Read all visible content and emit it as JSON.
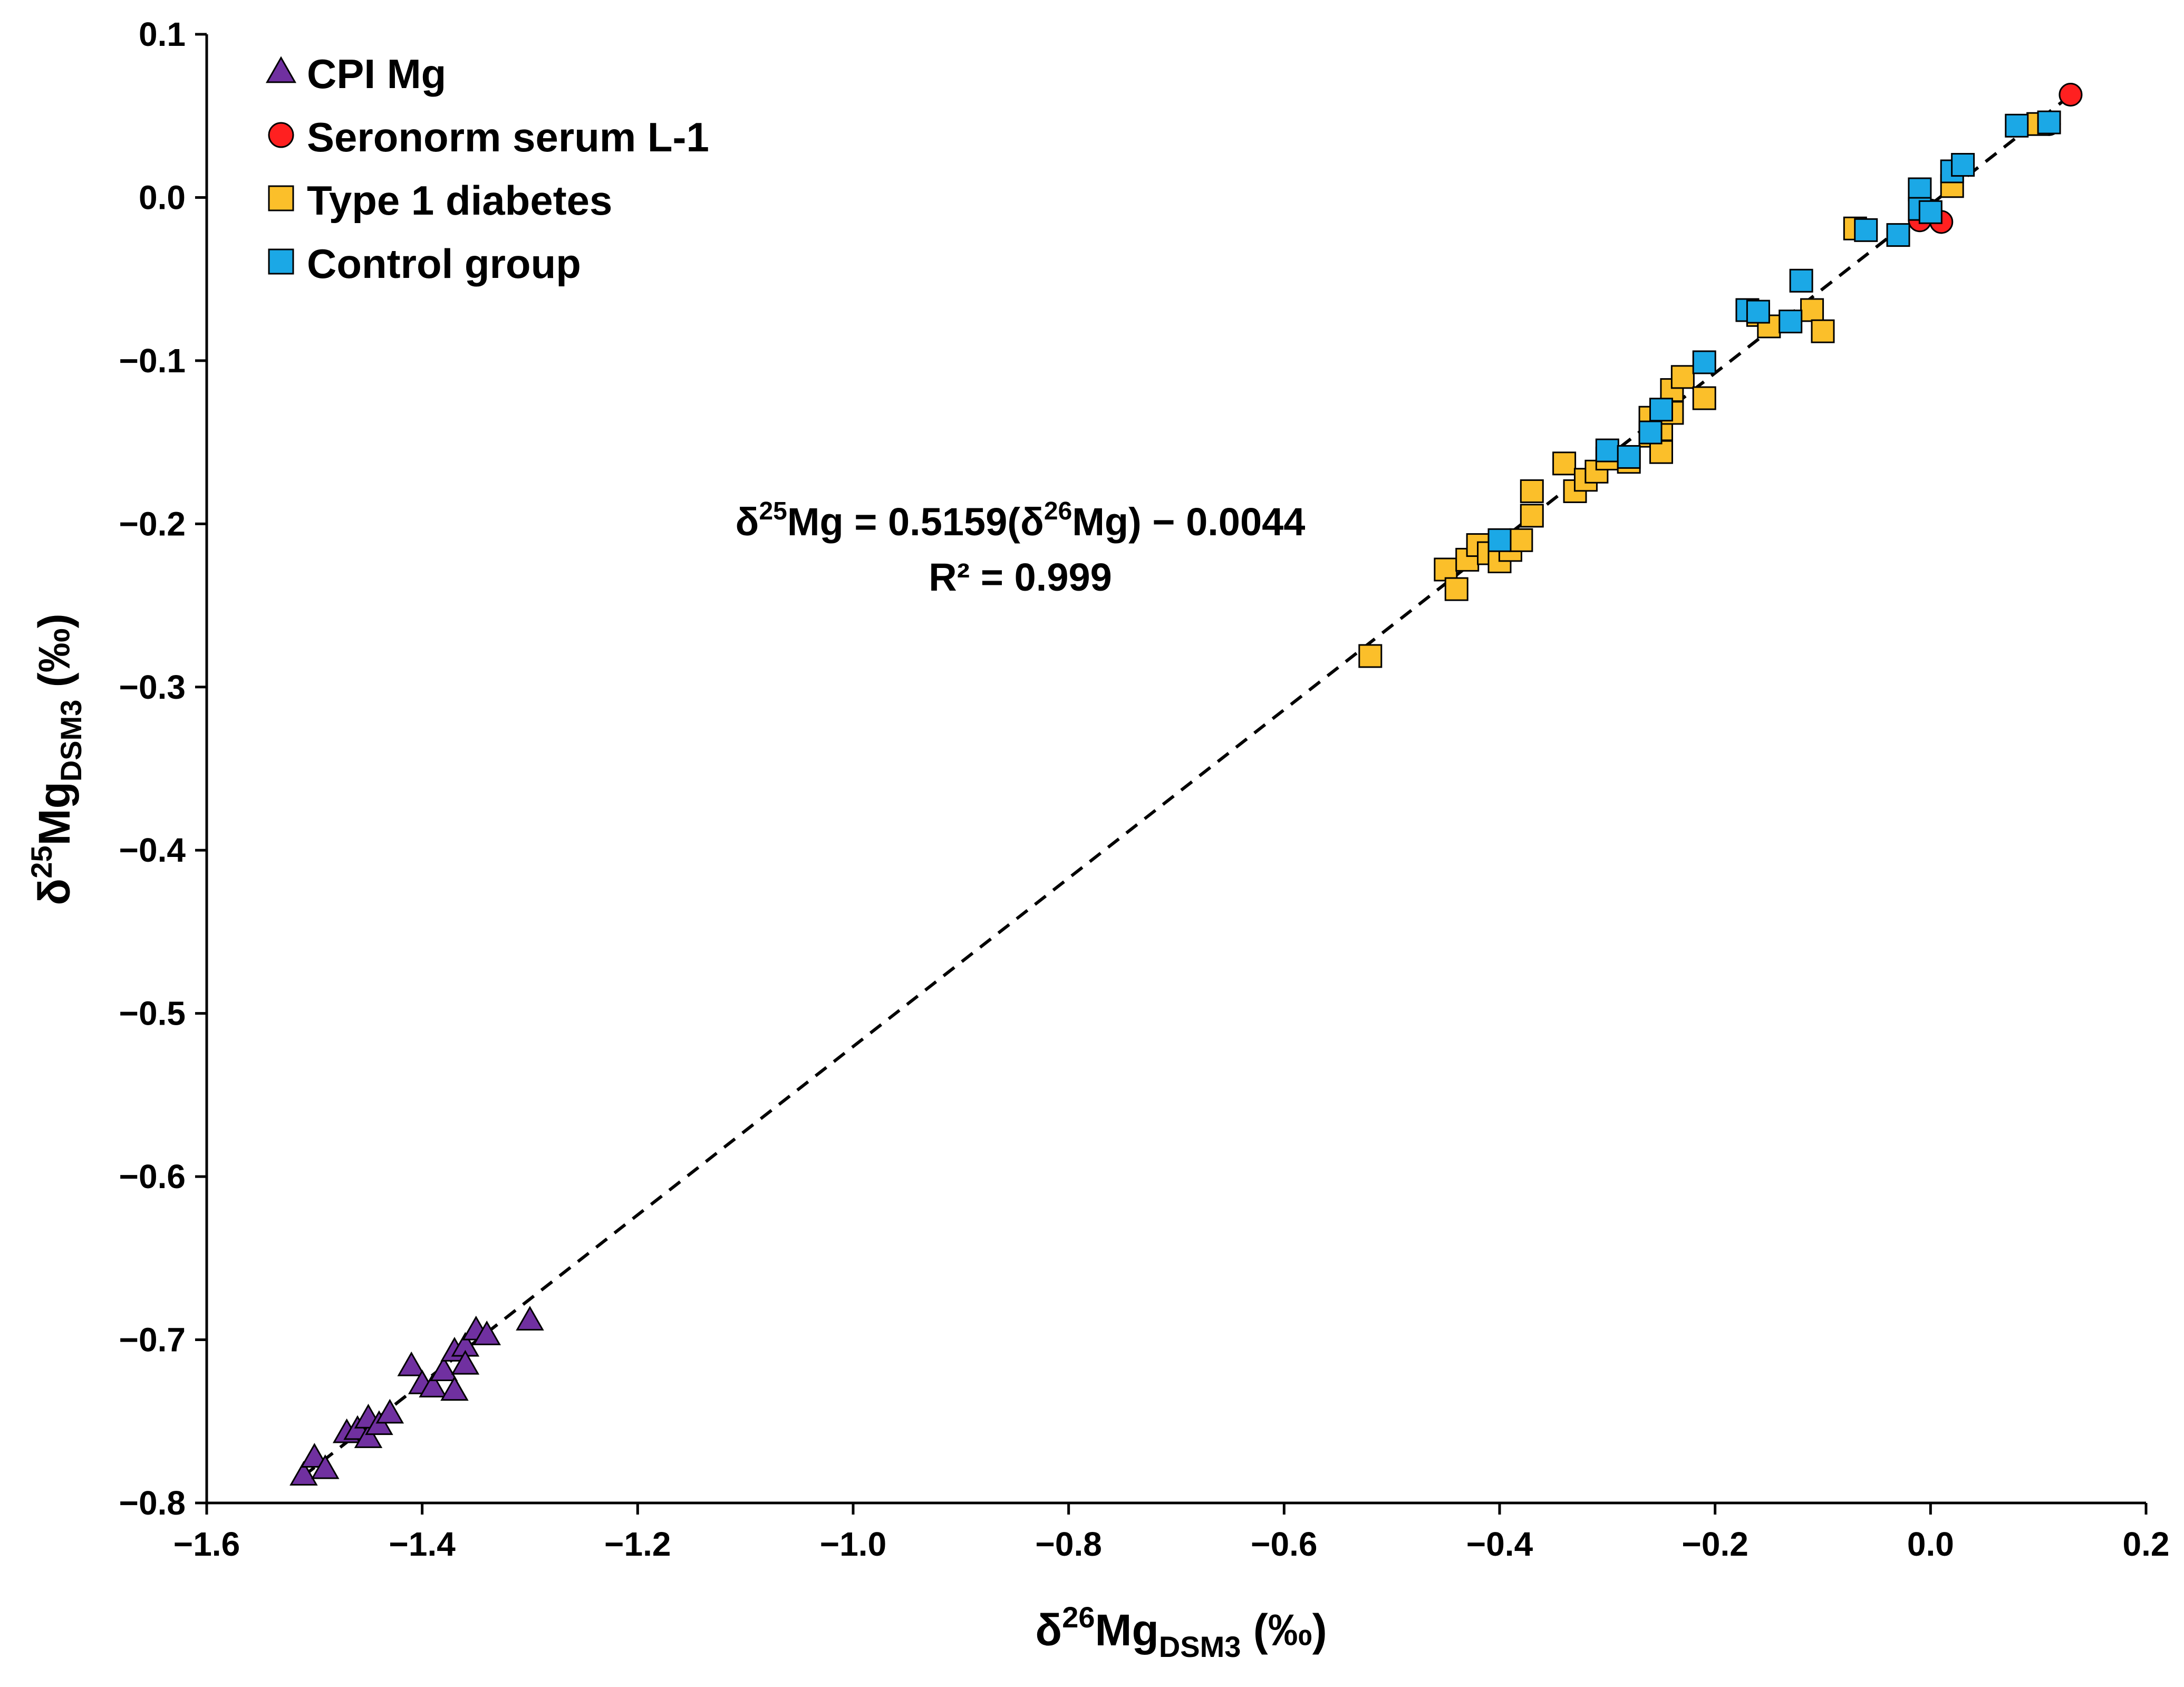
{
  "chart_data": {
    "type": "scatter",
    "title": "",
    "xlabel": {
      "prefix": "δ",
      "sup": "26",
      "main": "Mg",
      "sub": "DSM3",
      "suffix": " (‰)"
    },
    "ylabel": {
      "prefix": "δ",
      "sup": "25",
      "main": "Mg",
      "sub": "DSM3",
      "suffix": " (‰)"
    },
    "xlim": [
      -1.6,
      0.2
    ],
    "ylim": [
      -0.8,
      0.1
    ],
    "x_ticks": [
      -1.6,
      -1.4,
      -1.2,
      -1.0,
      -0.8,
      -0.6,
      -0.4,
      -0.2,
      0.0,
      0.2
    ],
    "x_tick_labels": [
      "−1.6",
      "−1.4",
      "−1.2",
      "−1.0",
      "−0.8",
      "−0.6",
      "−0.4",
      "−0.2",
      "0.0",
      "0.2"
    ],
    "y_ticks": [
      0.1,
      0.0,
      -0.1,
      -0.2,
      -0.3,
      -0.4,
      -0.5,
      -0.6,
      -0.7,
      -0.8
    ],
    "y_tick_labels": [
      "0.1",
      "0.0",
      "−0.1",
      "−0.2",
      "−0.3",
      "−0.4",
      "−0.5",
      "−0.6",
      "−0.7",
      "−0.8"
    ],
    "grid": false,
    "legend_position": "top-left",
    "fit_line": {
      "slope": 0.5159,
      "intercept": -0.0044,
      "x_range": [
        -1.51,
        0.13
      ],
      "style": "dashed"
    },
    "annotation": {
      "line1": {
        "a": "δ",
        "b": "25",
        "c": "Mg = 0.5159(δ",
        "d": "26",
        "e": "Mg) − 0.0044"
      },
      "line2": "R² = 0.999"
    },
    "series": [
      {
        "name": "CPI Mg",
        "marker": "triangle",
        "color": "#7030a0",
        "points": [
          [
            -1.51,
            -0.783
          ],
          [
            -1.5,
            -0.772
          ],
          [
            -1.49,
            -0.779
          ],
          [
            -1.47,
            -0.757
          ],
          [
            -1.46,
            -0.755
          ],
          [
            -1.45,
            -0.76
          ],
          [
            -1.45,
            -0.748
          ],
          [
            -1.44,
            -0.752
          ],
          [
            -1.43,
            -0.745
          ],
          [
            -1.41,
            -0.716
          ],
          [
            -1.4,
            -0.727
          ],
          [
            -1.39,
            -0.729
          ],
          [
            -1.38,
            -0.719
          ],
          [
            -1.37,
            -0.707
          ],
          [
            -1.37,
            -0.731
          ],
          [
            -1.36,
            -0.704
          ],
          [
            -1.36,
            -0.715
          ],
          [
            -1.35,
            -0.694
          ],
          [
            -1.34,
            -0.697
          ],
          [
            -1.3,
            -0.688
          ]
        ]
      },
      {
        "name": "Seronorm serum L-1",
        "marker": "circle",
        "color": "#ff2020",
        "points": [
          [
            -0.01,
            -0.014
          ],
          [
            0.01,
            -0.015
          ],
          [
            0.0,
            -0.008
          ],
          [
            0.11,
            0.045
          ],
          [
            0.13,
            0.063
          ]
        ]
      },
      {
        "name": "Type 1 diabetes",
        "marker": "square",
        "color": "#fbbf2a",
        "points": [
          [
            -0.52,
            -0.281
          ],
          [
            -0.45,
            -0.228
          ],
          [
            -0.44,
            -0.24
          ],
          [
            -0.43,
            -0.222
          ],
          [
            -0.42,
            -0.213
          ],
          [
            -0.41,
            -0.218
          ],
          [
            -0.4,
            -0.223
          ],
          [
            -0.39,
            -0.216
          ],
          [
            -0.38,
            -0.21
          ],
          [
            -0.37,
            -0.195
          ],
          [
            -0.37,
            -0.18
          ],
          [
            -0.34,
            -0.163
          ],
          [
            -0.33,
            -0.18
          ],
          [
            -0.32,
            -0.173
          ],
          [
            -0.31,
            -0.168
          ],
          [
            -0.3,
            -0.16
          ],
          [
            -0.28,
            -0.162
          ],
          [
            -0.26,
            -0.146
          ],
          [
            -0.26,
            -0.135
          ],
          [
            -0.25,
            -0.156
          ],
          [
            -0.25,
            -0.142
          ],
          [
            -0.24,
            -0.118
          ],
          [
            -0.24,
            -0.132
          ],
          [
            -0.23,
            -0.11
          ],
          [
            -0.21,
            -0.123
          ],
          [
            -0.16,
            -0.072
          ],
          [
            -0.15,
            -0.079
          ],
          [
            -0.11,
            -0.069
          ],
          [
            -0.1,
            -0.082
          ],
          [
            -0.07,
            -0.019
          ],
          [
            0.02,
            0.007
          ],
          [
            0.1,
            0.045
          ]
        ]
      },
      {
        "name": "Control group",
        "marker": "square",
        "color": "#1ba8e6",
        "points": [
          [
            -0.4,
            -0.21
          ],
          [
            -0.3,
            -0.155
          ],
          [
            -0.28,
            -0.159
          ],
          [
            -0.26,
            -0.144
          ],
          [
            -0.25,
            -0.13
          ],
          [
            -0.21,
            -0.101
          ],
          [
            -0.17,
            -0.069
          ],
          [
            -0.16,
            -0.07
          ],
          [
            -0.13,
            -0.076
          ],
          [
            -0.12,
            -0.051
          ],
          [
            -0.06,
            -0.02
          ],
          [
            -0.03,
            -0.023
          ],
          [
            -0.01,
            0.005
          ],
          [
            -0.01,
            -0.007
          ],
          [
            0.0,
            -0.009
          ],
          [
            0.02,
            0.016
          ],
          [
            0.03,
            0.02
          ],
          [
            0.08,
            0.044
          ],
          [
            0.11,
            0.046
          ]
        ]
      }
    ]
  }
}
